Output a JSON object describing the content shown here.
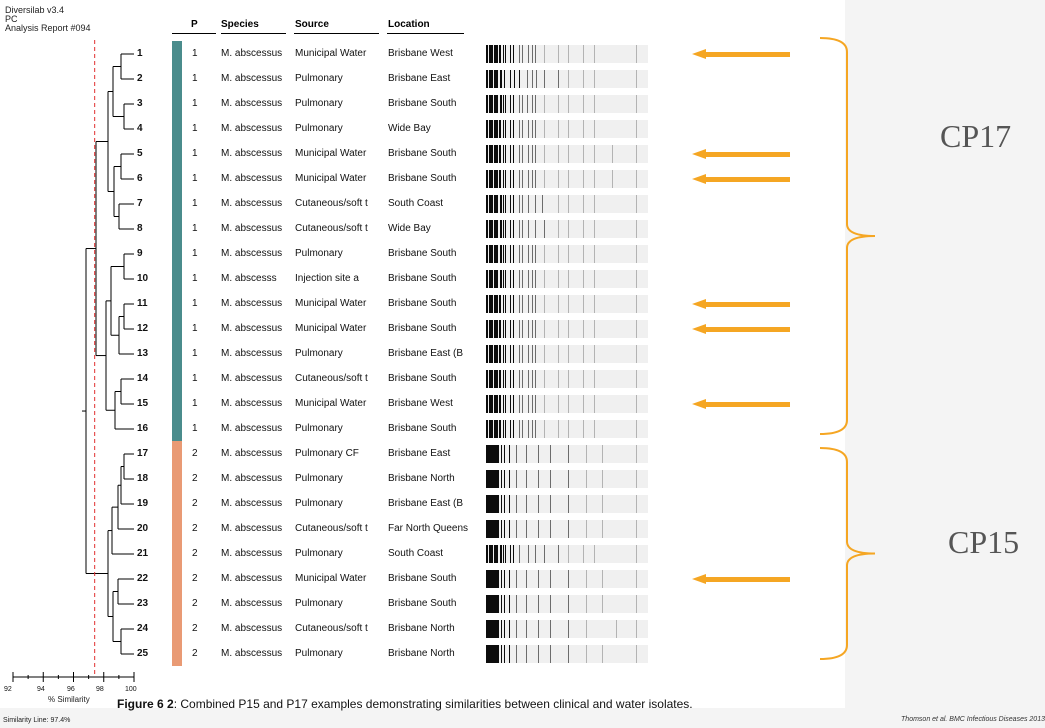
{
  "report": {
    "software": "Diversilab v3.4",
    "line2": "PC",
    "title": "Analysis Report #094"
  },
  "columns": {
    "p": "P",
    "species": "Species",
    "source": "Source",
    "location": "Location"
  },
  "colors": {
    "p1": "#4a8c8c",
    "p2": "#e99a74",
    "arrow": "#f5a623",
    "bracket": "#f5a623",
    "cutoff": "#e03030"
  },
  "rows": [
    {
      "num": "1",
      "p": "1",
      "species": "M. abscessus",
      "source": "Municipal Water",
      "location": "Brisbane West",
      "arrow": true,
      "bands": [
        0,
        3,
        5,
        8,
        10,
        13,
        17,
        19,
        24,
        27,
        33,
        36,
        42,
        46,
        49,
        58,
        72,
        82,
        97,
        108,
        150
      ]
    },
    {
      "num": "2",
      "p": "1",
      "species": "M. abscessus",
      "source": "Pulmonary",
      "location": "Brisbane East",
      "arrow": false,
      "bands": [
        0,
        3,
        5,
        8,
        10,
        14,
        18,
        24,
        28,
        33,
        41,
        46,
        50,
        58,
        72,
        82,
        97,
        108,
        150
      ]
    },
    {
      "num": "3",
      "p": "1",
      "species": "M. abscessus",
      "source": "Pulmonary",
      "location": "Brisbane South",
      "arrow": false,
      "bands": [
        0,
        3,
        5,
        8,
        10,
        14,
        17,
        19,
        24,
        27,
        33,
        36,
        41,
        46,
        49,
        58,
        72,
        82,
        97,
        108,
        150
      ]
    },
    {
      "num": "4",
      "p": "1",
      "species": "M. abscessus",
      "source": "Pulmonary",
      "location": "Wide Bay",
      "arrow": false,
      "bands": [
        0,
        3,
        5,
        8,
        10,
        13,
        17,
        19,
        24,
        27,
        33,
        36,
        42,
        46,
        49,
        58,
        72,
        82,
        97,
        108,
        150
      ]
    },
    {
      "num": "5",
      "p": "1",
      "species": "M. abscessus",
      "source": "Municipal Water",
      "location": "Brisbane South",
      "arrow": true,
      "bands": [
        0,
        3,
        5,
        8,
        10,
        13,
        17,
        19,
        24,
        27,
        33,
        36,
        42,
        46,
        49,
        58,
        72,
        82,
        97,
        108,
        126,
        150
      ]
    },
    {
      "num": "6",
      "p": "1",
      "species": "M. abscessus",
      "source": "Municipal Water",
      "location": "Brisbane South",
      "arrow": true,
      "bands": [
        0,
        3,
        5,
        8,
        10,
        13,
        17,
        19,
        24,
        27,
        33,
        36,
        42,
        46,
        49,
        58,
        72,
        82,
        97,
        108,
        126,
        150
      ]
    },
    {
      "num": "7",
      "p": "1",
      "species": "M. abscessus",
      "source": "Cutaneous/soft t",
      "location": "South Coast",
      "arrow": false,
      "bands": [
        0,
        3,
        5,
        8,
        10,
        14,
        17,
        19,
        24,
        27,
        33,
        36,
        42,
        49,
        56,
        72,
        82,
        97,
        108,
        150
      ]
    },
    {
      "num": "8",
      "p": "1",
      "species": "M. abscessus",
      "source": "Cutaneous/soft t",
      "location": "Wide Bay",
      "arrow": false,
      "bands": [
        0,
        3,
        5,
        8,
        10,
        14,
        17,
        19,
        24,
        27,
        33,
        36,
        42,
        49,
        58,
        72,
        82,
        97,
        108,
        150
      ]
    },
    {
      "num": "9",
      "p": "1",
      "species": "M. abscessus",
      "source": "Pulmonary",
      "location": "Brisbane South",
      "arrow": false,
      "bands": [
        0,
        3,
        5,
        8,
        10,
        14,
        17,
        19,
        24,
        27,
        33,
        36,
        42,
        46,
        49,
        58,
        72,
        82,
        97,
        108,
        150
      ]
    },
    {
      "num": "10",
      "p": "1",
      "species": "M. abscesss",
      "source": "Injection site a",
      "location": "Brisbane South",
      "arrow": false,
      "bands": [
        0,
        3,
        5,
        8,
        10,
        14,
        17,
        19,
        24,
        27,
        33,
        36,
        42,
        46,
        49,
        58,
        72,
        82,
        97,
        108,
        150
      ]
    },
    {
      "num": "11",
      "p": "1",
      "species": "M. abscessus",
      "source": "Municipal Water",
      "location": "Brisbane South",
      "arrow": true,
      "bands": [
        0,
        3,
        5,
        8,
        10,
        13,
        17,
        19,
        24,
        27,
        33,
        36,
        42,
        46,
        49,
        58,
        72,
        82,
        97,
        108,
        150
      ]
    },
    {
      "num": "12",
      "p": "1",
      "species": "M. abscessus",
      "source": "Municipal Water",
      "location": "Brisbane South",
      "arrow": true,
      "bands": [
        0,
        3,
        5,
        8,
        10,
        13,
        17,
        19,
        24,
        27,
        33,
        36,
        42,
        46,
        49,
        58,
        72,
        82,
        97,
        108,
        150
      ]
    },
    {
      "num": "13",
      "p": "1",
      "species": "M. abscessus",
      "source": "Pulmonary",
      "location": "Brisbane East (B",
      "arrow": false,
      "bands": [
        0,
        3,
        5,
        8,
        10,
        13,
        17,
        19,
        24,
        27,
        33,
        36,
        42,
        46,
        49,
        58,
        72,
        82,
        97,
        108,
        150
      ]
    },
    {
      "num": "14",
      "p": "1",
      "species": "M. abscessus",
      "source": "Cutaneous/soft t",
      "location": "Brisbane South",
      "arrow": false,
      "bands": [
        0,
        3,
        5,
        8,
        10,
        13,
        17,
        19,
        24,
        27,
        33,
        36,
        42,
        46,
        49,
        58,
        72,
        82,
        97,
        108,
        150
      ]
    },
    {
      "num": "15",
      "p": "1",
      "species": "M. abscessus",
      "source": "Municipal Water",
      "location": "Brisbane West",
      "arrow": true,
      "bands": [
        0,
        3,
        5,
        8,
        10,
        13,
        17,
        19,
        24,
        27,
        33,
        36,
        42,
        46,
        49,
        58,
        72,
        82,
        97,
        108,
        150
      ]
    },
    {
      "num": "16",
      "p": "1",
      "species": "M. abscessus",
      "source": "Pulmonary",
      "location": "Brisbane South",
      "arrow": false,
      "bands": [
        0,
        3,
        5,
        8,
        10,
        13,
        17,
        19,
        24,
        27,
        33,
        36,
        42,
        46,
        49,
        58,
        72,
        82,
        97,
        108,
        150
      ]
    },
    {
      "num": "17",
      "p": "2",
      "species": "M. abscessus",
      "source": "Pulmonary CF",
      "location": "Brisbane East",
      "arrow": false,
      "bands": [
        0,
        2,
        4,
        6,
        8,
        10,
        12,
        15,
        18,
        23,
        30,
        40,
        52,
        64,
        82,
        100,
        116,
        150
      ]
    },
    {
      "num": "18",
      "p": "2",
      "species": "M. abscessus",
      "source": "Pulmonary",
      "location": "Brisbane North",
      "arrow": false,
      "bands": [
        0,
        2,
        4,
        6,
        8,
        10,
        12,
        15,
        18,
        23,
        30,
        40,
        52,
        64,
        82,
        100,
        116,
        150
      ]
    },
    {
      "num": "19",
      "p": "2",
      "species": "M. abscessus",
      "source": "Pulmonary",
      "location": "Brisbane East (B",
      "arrow": false,
      "bands": [
        0,
        2,
        4,
        6,
        8,
        10,
        12,
        15,
        18,
        23,
        30,
        40,
        52,
        64,
        82,
        100,
        116,
        150
      ]
    },
    {
      "num": "20",
      "p": "2",
      "species": "M. abscessus",
      "source": "Cutaneous/soft t",
      "location": "Far North Queens",
      "arrow": false,
      "bands": [
        0,
        2,
        4,
        6,
        8,
        10,
        12,
        15,
        18,
        23,
        30,
        40,
        52,
        64,
        82,
        100,
        116,
        150
      ]
    },
    {
      "num": "21",
      "p": "2",
      "species": "M. abscessus",
      "source": "Pulmonary",
      "location": "South Coast",
      "arrow": false,
      "bands": [
        0,
        3,
        5,
        8,
        10,
        14,
        17,
        19,
        24,
        27,
        33,
        42,
        49,
        58,
        72,
        82,
        97,
        108,
        150
      ]
    },
    {
      "num": "22",
      "p": "2",
      "species": "M. abscessus",
      "source": "Municipal Water",
      "location": "Brisbane South",
      "arrow": true,
      "bands": [
        0,
        2,
        4,
        6,
        8,
        10,
        12,
        15,
        18,
        23,
        30,
        40,
        52,
        64,
        82,
        100,
        116,
        150
      ]
    },
    {
      "num": "23",
      "p": "2",
      "species": "M. abscessus",
      "source": "Pulmonary",
      "location": "Brisbane South",
      "arrow": false,
      "bands": [
        0,
        2,
        4,
        6,
        8,
        10,
        12,
        15,
        18,
        23,
        30,
        40,
        52,
        64,
        82,
        100,
        116,
        150
      ]
    },
    {
      "num": "24",
      "p": "2",
      "species": "M. abscessus",
      "source": "Cutaneous/soft t",
      "location": "Brisbane North",
      "arrow": false,
      "bands": [
        0,
        2,
        4,
        6,
        8,
        10,
        12,
        15,
        18,
        23,
        30,
        40,
        52,
        64,
        82,
        100,
        130,
        150
      ]
    },
    {
      "num": "25",
      "p": "2",
      "species": "M. abscessus",
      "source": "Pulmonary",
      "location": "Brisbane North",
      "arrow": false,
      "bands": [
        0,
        2,
        4,
        6,
        8,
        10,
        12,
        15,
        18,
        23,
        30,
        40,
        52,
        64,
        82,
        100,
        116,
        150
      ]
    }
  ],
  "groups": [
    {
      "label": "CP17",
      "first": 1,
      "last": 16
    },
    {
      "label": "CP15",
      "first": 17,
      "last": 25
    }
  ],
  "axis": {
    "label": "% Similarity",
    "ticks": [
      "92",
      "94",
      "96",
      "98",
      "100"
    ],
    "min": 92,
    "max": 100,
    "cutoff": 97.4,
    "cutoff_text": "Similarity Line: 97.4%"
  },
  "caption": {
    "bold": "Figure 6 2",
    "text": ": Combined P15 and P17 examples demonstrating similarities between clinical and water isolates."
  },
  "credit": "Thomson et al. BMC Infectious Diseases 2013"
}
